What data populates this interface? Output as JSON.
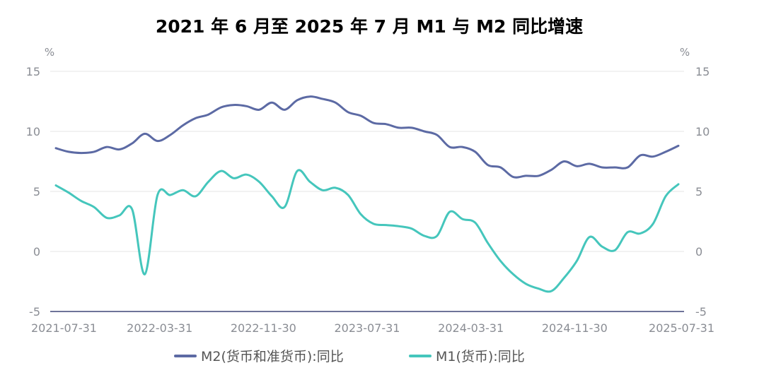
{
  "chart_data": {
    "type": "line",
    "title": "2021 年 6 月至 2025 年 7 月 M1 与 M2 同比增速",
    "y_unit_left": "%",
    "y_unit_right": "%",
    "ylim": [
      -5,
      15
    ],
    "y_ticks": [
      "15",
      "10",
      "5",
      "0",
      "-5"
    ],
    "x_tick_labels": [
      "2021-07-31",
      "2022-03-31",
      "2022-11-30",
      "2023-07-31",
      "2024-03-31",
      "2024-11-30",
      "2025-07-31"
    ],
    "grid": true,
    "legend_position": "bottom",
    "colors": {
      "M2": "#5c6aa4",
      "M1": "#45c6bc",
      "grid": "#e6e6e6",
      "axis": "#6e7399"
    },
    "x": [
      "2021-06",
      "2021-07",
      "2021-08",
      "2021-09",
      "2021-10",
      "2021-11",
      "2021-12",
      "2022-01",
      "2022-02",
      "2022-03",
      "2022-04",
      "2022-05",
      "2022-06",
      "2022-07",
      "2022-08",
      "2022-09",
      "2022-10",
      "2022-11",
      "2022-12",
      "2023-01",
      "2023-02",
      "2023-03",
      "2023-04",
      "2023-05",
      "2023-06",
      "2023-07",
      "2023-08",
      "2023-09",
      "2023-10",
      "2023-11",
      "2023-12",
      "2024-01",
      "2024-02",
      "2024-03",
      "2024-04",
      "2024-05",
      "2024-06",
      "2024-07",
      "2024-08",
      "2024-09",
      "2024-10",
      "2024-11",
      "2024-12",
      "2025-01",
      "2025-02",
      "2025-03",
      "2025-04",
      "2025-05",
      "2025-06",
      "2025-07"
    ],
    "series": [
      {
        "name": "M2(货币和准货币):同比",
        "values": [
          8.6,
          8.3,
          8.2,
          8.3,
          8.7,
          8.5,
          9.0,
          9.8,
          9.2,
          9.7,
          10.5,
          11.1,
          11.4,
          12.0,
          12.2,
          12.1,
          11.8,
          12.4,
          11.8,
          12.6,
          12.9,
          12.7,
          12.4,
          11.6,
          11.3,
          10.7,
          10.6,
          10.3,
          10.3,
          10.0,
          9.7,
          8.7,
          8.7,
          8.3,
          7.2,
          7.0,
          6.2,
          6.3,
          6.3,
          6.8,
          7.5,
          7.1,
          7.3,
          7.0,
          7.0,
          7.0,
          8.0,
          7.9,
          8.3,
          8.8
        ]
      },
      {
        "name": "M1(货币):同比",
        "values": [
          5.5,
          4.9,
          4.2,
          3.7,
          2.8,
          3.0,
          3.5,
          -1.9,
          4.7,
          4.7,
          5.1,
          4.6,
          5.8,
          6.7,
          6.1,
          6.4,
          5.8,
          4.6,
          3.7,
          6.7,
          5.8,
          5.1,
          5.3,
          4.7,
          3.1,
          2.3,
          2.2,
          2.1,
          1.9,
          1.3,
          1.3,
          3.3,
          2.7,
          2.4,
          0.7,
          -0.8,
          -1.9,
          -2.7,
          -3.1,
          -3.3,
          -2.2,
          -0.8,
          1.2,
          0.4,
          0.1,
          1.6,
          1.5,
          2.3,
          4.6,
          5.6
        ]
      }
    ]
  }
}
